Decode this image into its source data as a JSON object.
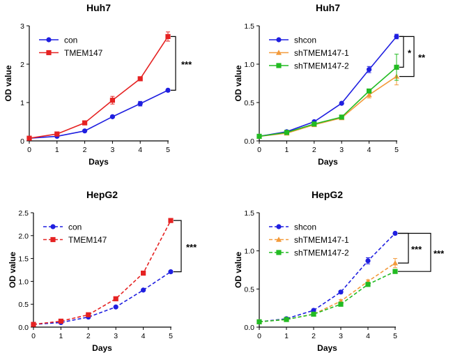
{
  "colors": {
    "blue": "#1f1fe0",
    "red": "#e52222",
    "orange": "#f39a3a",
    "green": "#22bb22"
  },
  "chart_data": [
    {
      "type": "line",
      "title": "Huh7",
      "xlabel": "Days",
      "ylabel": "OD value",
      "x": [
        0,
        1,
        2,
        3,
        4,
        5
      ],
      "xticks": [
        "0",
        "1",
        "2",
        "3",
        "4",
        "5"
      ],
      "ylim": [
        0,
        3
      ],
      "yticks": [
        "0",
        "1",
        "2",
        "3"
      ],
      "dashed": false,
      "legend": "top-left",
      "series": [
        {
          "name": "con",
          "marker": "circle",
          "color": "#1f1fe0",
          "values": [
            0.07,
            0.12,
            0.26,
            0.63,
            0.97,
            1.32
          ],
          "errors": [
            0,
            0,
            0,
            0.02,
            0.06,
            0.03
          ]
        },
        {
          "name": "TMEM147",
          "marker": "square",
          "color": "#e52222",
          "values": [
            0.07,
            0.18,
            0.47,
            1.06,
            1.62,
            2.72
          ],
          "errors": [
            0,
            0.02,
            0.03,
            0.1,
            0.03,
            0.12
          ]
        }
      ],
      "significance": [
        {
          "label": "***",
          "from": 0,
          "to": 1
        }
      ]
    },
    {
      "type": "line",
      "title": "Huh7",
      "xlabel": "Days",
      "ylabel": "OD value",
      "x": [
        0,
        1,
        2,
        3,
        4,
        5
      ],
      "xticks": [
        "0",
        "1",
        "2",
        "3",
        "4",
        "5"
      ],
      "ylim": [
        0,
        1.5
      ],
      "yticks": [
        "0.0",
        "0.5",
        "1.0",
        "1.5"
      ],
      "dashed": false,
      "legend": "top-left",
      "series": [
        {
          "name": "shcon",
          "marker": "circle",
          "color": "#1f1fe0",
          "values": [
            0.06,
            0.12,
            0.25,
            0.49,
            0.93,
            1.36
          ],
          "errors": [
            0,
            0.01,
            0.01,
            0.01,
            0.04,
            0.03
          ]
        },
        {
          "name": "shTMEM147-1",
          "marker": "triangle",
          "color": "#f39a3a",
          "values": [
            0.06,
            0.1,
            0.21,
            0.3,
            0.6,
            0.84
          ],
          "errors": [
            0,
            0.01,
            0.01,
            0.02,
            0.04,
            0.11
          ]
        },
        {
          "name": "shTMEM147-2",
          "marker": "square",
          "color": "#22bb22",
          "values": [
            0.06,
            0.11,
            0.22,
            0.31,
            0.65,
            0.96
          ],
          "errors": [
            0,
            0.01,
            0.01,
            0.02,
            0.02,
            0.17
          ]
        }
      ],
      "significance": [
        {
          "label": "*",
          "from": 0,
          "to": 2
        },
        {
          "label": "**",
          "from": 0,
          "to": 1
        }
      ]
    },
    {
      "type": "line",
      "title": "HepG2",
      "xlabel": "Days",
      "ylabel": "OD value",
      "x": [
        0,
        1,
        2,
        3,
        4,
        5
      ],
      "xticks": [
        "0",
        "1",
        "2",
        "3",
        "4",
        "5"
      ],
      "ylim": [
        0,
        2.5
      ],
      "yticks": [
        "0.0",
        "0.5",
        "1.0",
        "1.5",
        "2.0",
        "2.5"
      ],
      "dashed": true,
      "legend": "top-left",
      "series": [
        {
          "name": "con",
          "marker": "circle",
          "color": "#1f1fe0",
          "values": [
            0.06,
            0.1,
            0.22,
            0.44,
            0.81,
            1.21
          ],
          "errors": [
            0,
            0,
            0,
            0.01,
            0.01,
            0.01
          ]
        },
        {
          "name": "TMEM147",
          "marker": "square",
          "color": "#e52222",
          "values": [
            0.06,
            0.13,
            0.27,
            0.62,
            1.18,
            2.33
          ],
          "errors": [
            0,
            0.01,
            0.01,
            0.02,
            0.02,
            0.02
          ]
        }
      ],
      "significance": [
        {
          "label": "***",
          "from": 0,
          "to": 1
        }
      ]
    },
    {
      "type": "line",
      "title": "HepG2",
      "xlabel": "Days",
      "ylabel": "OD value",
      "x": [
        0,
        1,
        2,
        3,
        4,
        5
      ],
      "xticks": [
        "0",
        "1",
        "2",
        "3",
        "4",
        "5"
      ],
      "ylim": [
        0,
        1.5
      ],
      "yticks": [
        "0.0",
        "0.5",
        "1.0",
        "1.5"
      ],
      "dashed": true,
      "legend": "top-left",
      "series": [
        {
          "name": "shcon",
          "marker": "circle",
          "color": "#1f1fe0",
          "values": [
            0.07,
            0.11,
            0.22,
            0.46,
            0.87,
            1.23
          ],
          "errors": [
            0,
            0.01,
            0.01,
            0.02,
            0.04,
            0.01
          ]
        },
        {
          "name": "shTMEM147-1",
          "marker": "triangle",
          "color": "#f39a3a",
          "values": [
            0.07,
            0.1,
            0.17,
            0.34,
            0.6,
            0.84
          ],
          "errors": [
            0,
            0.01,
            0.01,
            0.02,
            0.02,
            0.06
          ]
        },
        {
          "name": "shTMEM147-2",
          "marker": "square",
          "color": "#22bb22",
          "values": [
            0.07,
            0.1,
            0.17,
            0.3,
            0.56,
            0.73
          ],
          "errors": [
            0,
            0.01,
            0.01,
            0.01,
            0.02,
            0.02
          ]
        }
      ],
      "significance": [
        {
          "label": "***",
          "from": 0,
          "to": 1
        },
        {
          "label": "***",
          "from": 0,
          "to": 2
        }
      ]
    }
  ]
}
